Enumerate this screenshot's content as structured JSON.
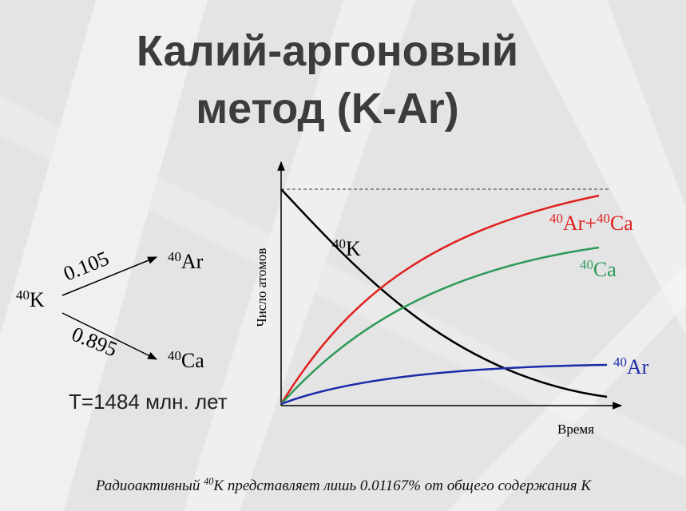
{
  "header": {
    "title": [
      "Калий-аргоновый",
      "метод (K-Ar)"
    ]
  },
  "decay_scheme": {
    "parent": {
      "mass": "40",
      "symbol": "K"
    },
    "branches": [
      {
        "fraction": 0.105,
        "product": {
          "mass": "40",
          "symbol": "Ar"
        }
      },
      {
        "fraction": 0.895,
        "product": {
          "mass": "40",
          "symbol": "Ca"
        }
      }
    ],
    "half_life": "T=1484 млн. лет"
  },
  "graph": {
    "y_label": "Число атомов",
    "x_label": "Время",
    "curves": [
      {
        "label": [
          {
            "mass": "40",
            "symbol": "K"
          }
        ]
      },
      {
        "label": [
          {
            "mass": "40",
            "symbol": "Ar+"
          },
          {
            "mass": "40",
            "symbol": "Ca"
          }
        ]
      },
      {
        "label": [
          {
            "mass": "40",
            "symbol": "Ca"
          }
        ]
      },
      {
        "label": [
          {
            "mass": "40",
            "symbol": "Ar"
          }
        ]
      }
    ]
  },
  "footer": {
    "before": "Радиоактивный ",
    "mass": "40",
    "after": "K представляет лишь 0.01167% от общего содержания K"
  }
}
